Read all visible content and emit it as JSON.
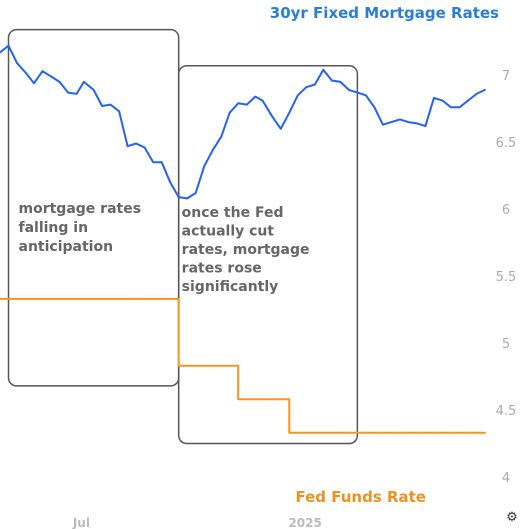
{
  "chart_data": {
    "type": "line",
    "x": [
      "2024-04-25",
      "2024-05-02",
      "2024-05-09",
      "2024-05-16",
      "2024-05-23",
      "2024-05-30",
      "2024-06-06",
      "2024-06-13",
      "2024-06-20",
      "2024-06-27",
      "2024-07-03",
      "2024-07-11",
      "2024-07-18",
      "2024-07-25",
      "2024-08-01",
      "2024-08-08",
      "2024-08-15",
      "2024-08-22",
      "2024-08-29",
      "2024-09-05",
      "2024-09-12",
      "2024-09-19",
      "2024-09-26",
      "2024-10-03",
      "2024-10-10",
      "2024-10-17",
      "2024-10-24",
      "2024-10-31",
      "2024-11-07",
      "2024-11-14",
      "2024-11-21",
      "2024-11-27",
      "2024-12-05",
      "2024-12-12",
      "2024-12-19",
      "2024-12-26",
      "2025-01-02",
      "2025-01-09",
      "2025-01-16",
      "2025-01-23",
      "2025-01-30",
      "2025-02-06",
      "2025-02-13",
      "2025-02-20",
      "2025-02-27",
      "2025-03-06",
      "2025-03-13",
      "2025-03-20",
      "2025-03-27",
      "2025-04-03",
      "2025-04-10",
      "2025-04-17",
      "2025-04-24",
      "2025-05-01",
      "2025-05-08",
      "2025-05-15",
      "2025-05-22",
      "2025-05-29"
    ],
    "series": [
      {
        "name": "30yr Fixed Mortgage Rates",
        "axis": "left",
        "color": "#2563eb",
        "values": [
          7.17,
          7.22,
          7.09,
          7.02,
          6.94,
          7.03,
          6.99,
          6.95,
          6.87,
          6.86,
          6.95,
          6.89,
          6.77,
          6.78,
          6.73,
          6.47,
          6.49,
          6.46,
          6.35,
          6.35,
          6.2,
          6.09,
          6.08,
          6.12,
          6.32,
          6.44,
          6.54,
          6.72,
          6.79,
          6.78,
          6.84,
          6.81,
          6.69,
          6.6,
          6.72,
          6.85,
          6.91,
          6.93,
          7.04,
          6.96,
          6.95,
          6.89,
          6.87,
          6.85,
          6.76,
          6.63,
          6.65,
          6.67,
          6.65,
          6.64,
          6.62,
          6.83,
          6.81,
          6.76,
          6.76,
          6.81,
          6.86,
          6.89
        ]
      },
      {
        "name": "Fed Funds Rate",
        "axis": "right",
        "color": "#f7931e",
        "values": [
          5.33,
          5.33,
          5.33,
          5.33,
          5.33,
          5.33,
          5.33,
          5.33,
          5.33,
          5.33,
          5.33,
          5.33,
          5.33,
          5.33,
          5.33,
          5.33,
          5.33,
          5.33,
          5.33,
          5.33,
          5.33,
          4.83,
          4.83,
          4.83,
          4.83,
          4.83,
          4.83,
          4.83,
          4.58,
          4.58,
          4.58,
          4.58,
          4.58,
          4.58,
          4.33,
          4.33,
          4.33,
          4.33,
          4.33,
          4.33,
          4.33,
          4.33,
          4.33,
          4.33,
          4.33,
          4.33,
          4.33,
          4.33,
          4.33,
          4.33,
          4.33,
          4.33,
          4.33,
          4.33,
          4.33,
          4.33,
          4.33,
          4.33
        ]
      }
    ],
    "x_ticks": [
      "Jul",
      "2025"
    ],
    "y_ticks": [
      "7",
      "6.5",
      "6",
      "5.5",
      "5",
      "4.5",
      "4"
    ],
    "ylim": [
      4,
      7.3
    ],
    "grid": false,
    "annotations": [
      {
        "text": [
          "mortgage rates",
          "falling in",
          "anticipation"
        ],
        "x_start": "2024-05-02",
        "x_end": "2024-09-19",
        "y_top": 7.34,
        "y_bottom": 4.68
      },
      {
        "text": [
          "once the Fed",
          "actually cut",
          "rates, mortgage",
          "rates rose",
          "significantly"
        ],
        "x_start": "2024-09-19",
        "x_end": "2025-02-13",
        "y_top": 7.07,
        "y_bottom": 4.25
      }
    ]
  }
}
